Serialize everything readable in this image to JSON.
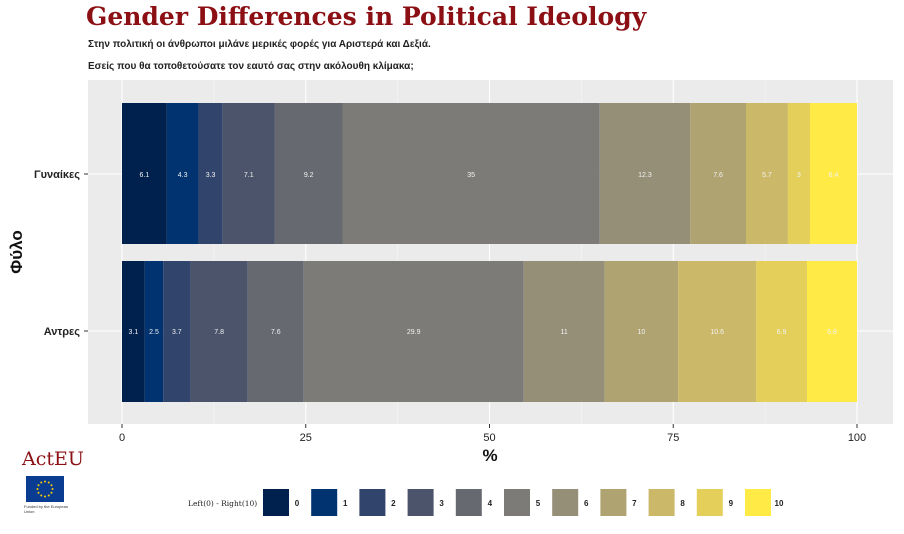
{
  "title": "Gender Differences in Political Ideology",
  "subtitle_1": "Στην πολιτική οι άνθρωποι μιλάνε μερικές φορές για Αριστερά και Δεξιά.",
  "subtitle_2": "Εσείς που θα τοποθετούσατε τον εαυτό σας στην ακόλουθη κλίμακα;",
  "logo": {
    "text": "ActEU",
    "eu_caption": "Funded by the European Union"
  },
  "chart_data": {
    "type": "bar",
    "orientation": "horizontal",
    "stacked": true,
    "categories": [
      "Γυναίκες",
      "Αντρες"
    ],
    "series": [
      {
        "name": "0",
        "color": "#00204d",
        "values": [
          6.1,
          3.1
        ]
      },
      {
        "name": "1",
        "color": "#00336f",
        "values": [
          4.3,
          2.5
        ]
      },
      {
        "name": "2",
        "color": "#31446b",
        "values": [
          3.3,
          3.7
        ]
      },
      {
        "name": "3",
        "color": "#4c546c",
        "values": [
          7.1,
          7.8
        ]
      },
      {
        "name": "4",
        "color": "#666970",
        "values": [
          9.2,
          7.6
        ]
      },
      {
        "name": "5",
        "color": "#7c7b78",
        "values": [
          35,
          29.9
        ]
      },
      {
        "name": "6",
        "color": "#958f78",
        "values": [
          12.3,
          11
        ]
      },
      {
        "name": "7",
        "color": "#aea371",
        "values": [
          7.6,
          10
        ]
      },
      {
        "name": "8",
        "color": "#cbb969",
        "values": [
          5.7,
          10.6
        ]
      },
      {
        "name": "9",
        "color": "#e4cf5b",
        "values": [
          3,
          6.9
        ]
      },
      {
        "name": "10",
        "color": "#ffea46",
        "values": [
          6.4,
          6.8
        ]
      }
    ],
    "data_labels": [
      [
        "6.1",
        "4.3",
        "3.3",
        "7.1",
        "9.2",
        "35",
        "12.3",
        "7.6",
        "5.7",
        "3",
        "6.4"
      ],
      [
        "3.1",
        "2.5",
        "3.7",
        "7.8",
        "7.6",
        "29.9",
        "11",
        "10",
        "10.6",
        "6.9",
        "6.8"
      ]
    ],
    "xlabel": "%",
    "ylabel": "Φύλο",
    "xlim": [
      0,
      100
    ],
    "xticks": [
      "0",
      "25",
      "50",
      "75",
      "100"
    ],
    "legend": {
      "title": "Left(0) - Right(10)",
      "position": "bottom"
    },
    "grid": true
  }
}
